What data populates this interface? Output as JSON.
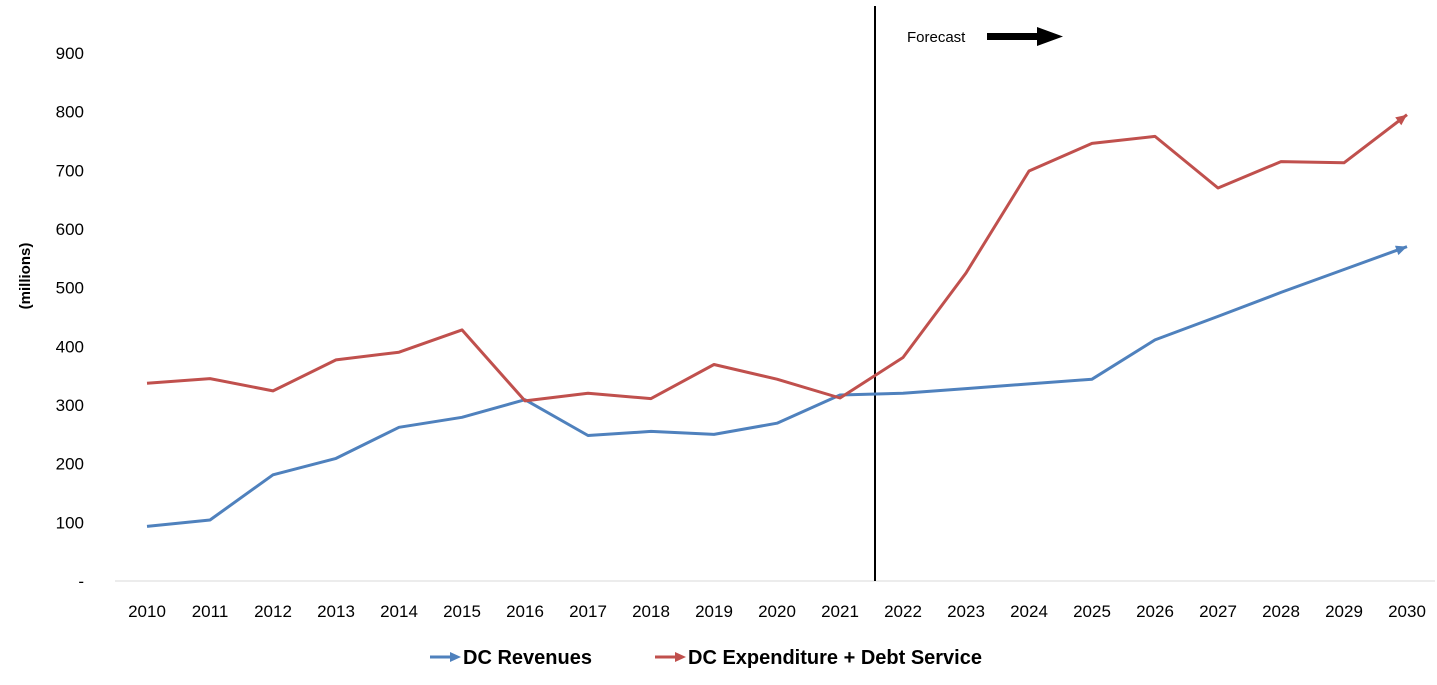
{
  "chart_data": {
    "type": "line",
    "title": "",
    "xlabel": "",
    "ylabel": "(millions)",
    "x": [
      "2010",
      "2011",
      "2012",
      "2013",
      "2014",
      "2015",
      "2016",
      "2017",
      "2018",
      "2019",
      "2020",
      "2021",
      "2022",
      "2023",
      "2024",
      "2025",
      "2026",
      "2027",
      "2028",
      "2029",
      "2030"
    ],
    "ylim": [
      0,
      900
    ],
    "yticks": [
      {
        "value": 0,
        "label": "-"
      },
      {
        "value": 100,
        "label": "100"
      },
      {
        "value": 200,
        "label": "200"
      },
      {
        "value": 300,
        "label": "300"
      },
      {
        "value": 400,
        "label": "400"
      },
      {
        "value": 500,
        "label": "500"
      },
      {
        "value": 600,
        "label": "600"
      },
      {
        "value": 700,
        "label": "700"
      },
      {
        "value": 800,
        "label": "800"
      },
      {
        "value": 900,
        "label": "900"
      }
    ],
    "grid": false,
    "legend_position": "bottom",
    "series": [
      {
        "name": "DC Revenues",
        "color": "#4f81bd",
        "values": [
          93,
          104,
          181,
          209,
          262,
          279,
          309,
          248,
          255,
          250,
          269,
          317,
          320,
          328,
          336,
          344,
          411,
          451,
          492,
          531,
          570
        ]
      },
      {
        "name": "DC Expenditure + Debt Service",
        "color": "#c0504d",
        "values": [
          337,
          345,
          324,
          377,
          390,
          428,
          307,
          320,
          311,
          369,
          344,
          312,
          381,
          525,
          699,
          746,
          758,
          670,
          715,
          713,
          795
        ]
      }
    ],
    "annotations": [
      {
        "text": "Forecast",
        "divider_between": [
          "2021",
          "2022"
        ],
        "arrow": "right"
      }
    ]
  }
}
